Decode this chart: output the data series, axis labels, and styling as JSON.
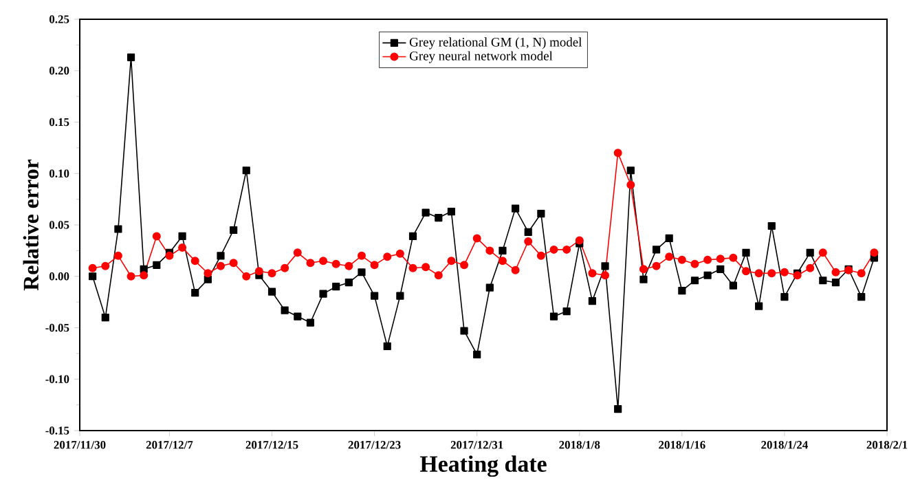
{
  "chart_data": {
    "type": "line",
    "xlabel": "Heating date",
    "ylabel": "Relative error",
    "x": [
      "2017-12-01",
      "2017-12-02",
      "2017-12-03",
      "2017-12-04",
      "2017-12-05",
      "2017-12-06",
      "2017-12-07",
      "2017-12-08",
      "2017-12-09",
      "2017-12-10",
      "2017-12-11",
      "2017-12-12",
      "2017-12-13",
      "2017-12-14",
      "2017-12-15",
      "2017-12-16",
      "2017-12-17",
      "2017-12-18",
      "2017-12-19",
      "2017-12-20",
      "2017-12-21",
      "2017-12-22",
      "2017-12-23",
      "2017-12-24",
      "2017-12-25",
      "2017-12-26",
      "2017-12-27",
      "2017-12-28",
      "2017-12-29",
      "2017-12-30",
      "2017-12-31",
      "2018-01-01",
      "2018-01-02",
      "2018-01-03",
      "2018-01-04",
      "2018-01-05",
      "2018-01-06",
      "2018-01-07",
      "2018-01-08",
      "2018-01-09",
      "2018-01-10",
      "2018-01-11",
      "2018-01-12",
      "2018-01-13",
      "2018-01-14",
      "2018-01-15",
      "2018-01-16",
      "2018-01-17",
      "2018-01-18",
      "2018-01-19",
      "2018-01-20",
      "2018-01-21",
      "2018-01-22",
      "2018-01-23",
      "2018-01-24",
      "2018-01-25",
      "2018-01-26",
      "2018-01-27",
      "2018-01-28",
      "2018-01-29",
      "2018-01-30",
      "2018-01-31"
    ],
    "series": [
      {
        "name": "Grey relational GM (1, N) model",
        "color": "#000000",
        "marker": "square",
        "values": [
          0.0,
          -0.04,
          0.046,
          0.213,
          0.007,
          0.011,
          0.023,
          0.039,
          -0.016,
          -0.003,
          0.02,
          0.045,
          0.103,
          0.001,
          -0.015,
          -0.033,
          -0.039,
          -0.045,
          -0.017,
          -0.01,
          -0.006,
          0.004,
          -0.019,
          -0.068,
          -0.019,
          0.039,
          0.062,
          0.057,
          0.063,
          -0.053,
          -0.076,
          -0.011,
          0.025,
          0.066,
          0.043,
          0.061,
          -0.039,
          -0.034,
          0.032,
          -0.024,
          0.01,
          -0.129,
          0.103,
          -0.003,
          0.026,
          0.037,
          -0.014,
          -0.004,
          0.001,
          0.007,
          -0.009,
          0.023,
          -0.029,
          0.049,
          -0.02,
          0.003,
          0.023,
          -0.004,
          -0.006,
          0.007,
          -0.02,
          0.018
        ]
      },
      {
        "name": "Grey neural network model",
        "color": "#ff0000",
        "marker": "circle",
        "values": [
          0.008,
          0.01,
          0.02,
          0.0,
          0.001,
          0.039,
          0.02,
          0.028,
          0.015,
          0.003,
          0.01,
          0.013,
          0.0,
          0.005,
          0.003,
          0.008,
          0.023,
          0.013,
          0.015,
          0.012,
          0.01,
          0.02,
          0.011,
          0.019,
          0.022,
          0.008,
          0.009,
          0.001,
          0.015,
          0.011,
          0.037,
          0.025,
          0.015,
          0.006,
          0.034,
          0.02,
          0.026,
          0.026,
          0.035,
          0.003,
          0.001,
          0.12,
          0.089,
          0.007,
          0.01,
          0.019,
          0.016,
          0.012,
          0.016,
          0.017,
          0.018,
          0.005,
          0.003,
          0.003,
          0.004,
          0.001,
          0.008,
          0.023,
          0.004,
          0.006,
          0.003,
          0.023
        ]
      }
    ],
    "xlim": [
      "2017-11-30",
      "2018-02-01"
    ],
    "xticks": [
      {
        "value": "2017-11-30",
        "label": "2017/11/30"
      },
      {
        "value": "2017-12-07",
        "label": "2017/12/7"
      },
      {
        "value": "2017-12-15",
        "label": "2017/12/15"
      },
      {
        "value": "2017-12-23",
        "label": "2017/12/23"
      },
      {
        "value": "2017-12-31",
        "label": "2017/12/31"
      },
      {
        "value": "2018-01-08",
        "label": "2018/1/8"
      },
      {
        "value": "2018-01-16",
        "label": "2018/1/16"
      },
      {
        "value": "2018-01-24",
        "label": "2018/1/24"
      },
      {
        "value": "2018-02-01",
        "label": "2018/2/1"
      }
    ],
    "ylim": [
      -0.15,
      0.25
    ],
    "yticks": [
      -0.15,
      {
        "value": -0.1,
        "label": "-0.10"
      },
      -0.05,
      {
        "value": 0,
        "label": "0.00"
      },
      0.05,
      {
        "value": 0.1,
        "label": "0.10"
      },
      0.15,
      {
        "value": 0.2,
        "label": "0.20"
      },
      0.25
    ],
    "legend": "top",
    "grid": false,
    "line_style": "solid"
  }
}
